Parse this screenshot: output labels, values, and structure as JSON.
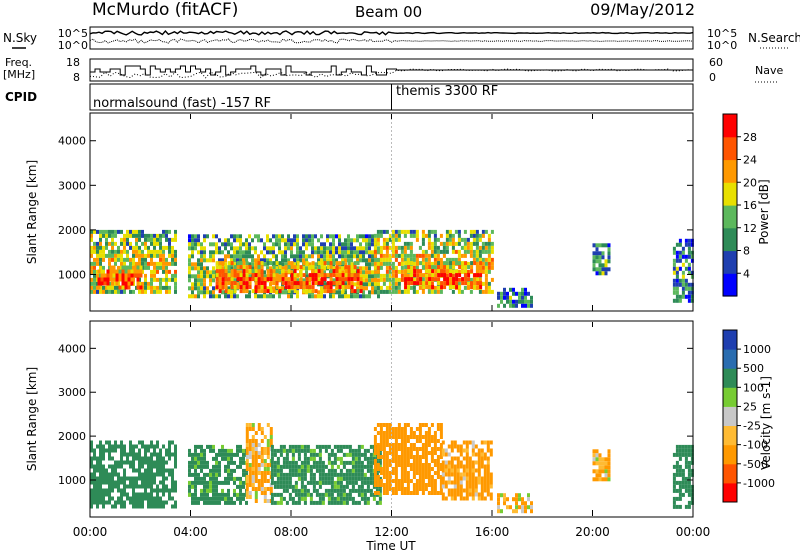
{
  "header": {
    "station": "McMurdo (fitACF)",
    "beam": "Beam 00",
    "date": "09/May/2012"
  },
  "noise_panel": {
    "left_label": "N.Sky",
    "right_label": "N.Search",
    "yticks_left": [
      "10^5",
      "10^0"
    ],
    "yticks_right": [
      "10^5",
      "10^0"
    ]
  },
  "freq_panel": {
    "left_label_line1": "Freq.",
    "left_label_line2": "[MHz]",
    "right_label": "Nave",
    "yticks_left": [
      "18",
      "8"
    ],
    "yticks_right": [
      "60",
      "0"
    ]
  },
  "cpid_panel": {
    "label": "CPID",
    "segments": [
      {
        "start": 0,
        "end": 12,
        "name": "normalsound (fast) -157 RF"
      },
      {
        "start": 12,
        "end": 24,
        "name": "themis 3300 RF"
      }
    ]
  },
  "colors": {
    "power_scale": [
      "#0000ff",
      "#1f3fb0",
      "#2e8b57",
      "#5cb85c",
      "#e8e000",
      "#ff9900",
      "#ff5500",
      "#ff0000"
    ],
    "velocity_scale": [
      "#ff0000",
      "#ff5500",
      "#ff9900",
      "#ffbb33",
      "#c8c8c8",
      "#77cc33",
      "#2e8b57",
      "#2a6db0",
      "#1f3fb0"
    ]
  },
  "chart_data": [
    {
      "type": "heatmap",
      "title": "",
      "xlabel": "",
      "ylabel": "Slant Range [km]",
      "xlim": [
        0,
        24
      ],
      "ylim": [
        180,
        4600
      ],
      "yticks": [
        1000,
        2000,
        3000,
        4000
      ],
      "colorbar": {
        "label": "Power [dB]",
        "ticks": [
          "4",
          "8",
          "12",
          "16",
          "20",
          "24",
          "28"
        ],
        "range": [
          0,
          30
        ]
      },
      "echo_regions": [
        {
          "t_start": 0.0,
          "t_end": 3.4,
          "r_low": 600,
          "r_high": 2000,
          "power": 18
        },
        {
          "t_start": 0.3,
          "t_end": 2.0,
          "r_low": 700,
          "r_high": 1200,
          "power": 28
        },
        {
          "t_start": 3.9,
          "t_end": 11.5,
          "r_low": 500,
          "r_high": 1900,
          "power": 16
        },
        {
          "t_start": 5.0,
          "t_end": 10.8,
          "r_low": 600,
          "r_high": 1300,
          "power": 27
        },
        {
          "t_start": 11.3,
          "t_end": 16.0,
          "r_low": 600,
          "r_high": 2000,
          "power": 20
        },
        {
          "t_start": 12.5,
          "t_end": 15.6,
          "r_low": 700,
          "r_high": 1300,
          "power": 27
        },
        {
          "t_start": 16.2,
          "t_end": 17.6,
          "r_low": 300,
          "r_high": 700,
          "power": 10
        },
        {
          "t_start": 20.0,
          "t_end": 20.6,
          "r_low": 1000,
          "r_high": 1700,
          "power": 12
        },
        {
          "t_start": 23.2,
          "t_end": 24.0,
          "r_low": 400,
          "r_high": 1800,
          "power": 10
        }
      ]
    },
    {
      "type": "heatmap",
      "title": "",
      "xlabel": "Time UT",
      "ylabel": "Slant Range [km]",
      "xlim": [
        0,
        24
      ],
      "xticks": [
        "00:00",
        "04:00",
        "08:00",
        "12:00",
        "16:00",
        "20:00",
        "00:00"
      ],
      "ylim": [
        180,
        4600
      ],
      "yticks": [
        1000,
        2000,
        3000,
        4000
      ],
      "colorbar": {
        "label": "Velocity [m s-1]",
        "ticks": [
          "-1000",
          "-500",
          "-100",
          "-25",
          "25",
          "100",
          "500",
          "1000"
        ],
        "range": [
          -1500,
          1500
        ]
      },
      "echo_regions": [
        {
          "t_start": 0.0,
          "t_end": 3.4,
          "r_low": 400,
          "r_high": 1900,
          "velocity": 300
        },
        {
          "t_start": 3.9,
          "t_end": 6.2,
          "r_low": 500,
          "r_high": 1800,
          "velocity": 250
        },
        {
          "t_start": 6.2,
          "t_end": 7.2,
          "r_low": 500,
          "r_high": 2300,
          "velocity": -150
        },
        {
          "t_start": 7.2,
          "t_end": 11.5,
          "r_low": 500,
          "r_high": 1800,
          "velocity": 250
        },
        {
          "t_start": 11.3,
          "t_end": 14.0,
          "r_low": 700,
          "r_high": 2300,
          "velocity": -300
        },
        {
          "t_start": 14.0,
          "t_end": 16.0,
          "r_low": 600,
          "r_high": 1900,
          "velocity": -200
        },
        {
          "t_start": 16.2,
          "t_end": 17.6,
          "r_low": 300,
          "r_high": 700,
          "velocity": -120
        },
        {
          "t_start": 20.0,
          "t_end": 20.6,
          "r_low": 1000,
          "r_high": 1700,
          "velocity": -150
        },
        {
          "t_start": 23.2,
          "t_end": 24.0,
          "r_low": 400,
          "r_high": 1800,
          "velocity": 300
        }
      ]
    }
  ]
}
